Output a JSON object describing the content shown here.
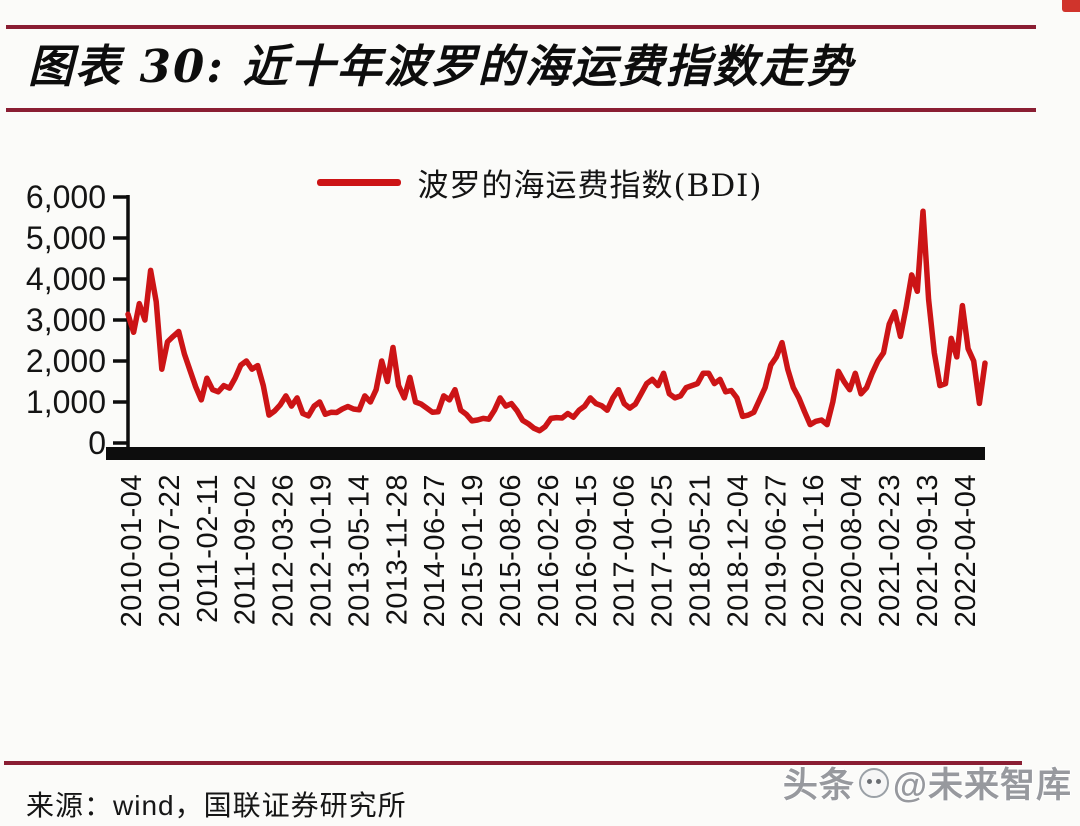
{
  "header": {
    "title": "图表 30:  近十年波罗的海运费指数走势",
    "rule_color": "#8a1e33"
  },
  "legend": {
    "label": "波罗的海运费指数(BDI)"
  },
  "source": {
    "text": "来源：wind，国联证券研究所"
  },
  "watermark": {
    "prefix": "头条",
    "handle": "@未来智库"
  },
  "chart_data": {
    "type": "line",
    "title": "近十年波罗的海运费指数走势",
    "series_name": "波罗的海运费指数(BDI)",
    "line_color": "#cc1416",
    "axis_color": "#0d0d0d",
    "legend_position": "top-center",
    "grid": false,
    "ylim": [
      0,
      6000
    ],
    "y_tick_labels": [
      "6,000",
      "5,000",
      "4,000",
      "3,000",
      "2,000",
      "1,000",
      "0"
    ],
    "x_tick_labels": [
      "2010-01-04",
      "2010-07-22",
      "2011-02-11",
      "2011-09-02",
      "2012-03-26",
      "2012-10-19",
      "2013-05-14",
      "2013-11-28",
      "2014-06-27",
      "2015-01-19",
      "2015-08-06",
      "2016-02-26",
      "2016-09-15",
      "2017-04-06",
      "2017-10-25",
      "2018-05-21",
      "2018-12-04",
      "2019-06-27",
      "2020-01-16",
      "2020-08-04",
      "2021-02-23",
      "2021-09-13",
      "2022-04-04"
    ],
    "sampling": {
      "interval": "monthly-approx",
      "start": "2010-01",
      "end": "2022-09"
    },
    "values": [
      3140,
      2700,
      3400,
      3000,
      4209,
      3450,
      1800,
      2468,
      2600,
      2720,
      2170,
      1773,
      1370,
      1050,
      1580,
      1300,
      1250,
      1400,
      1340,
      1580,
      1900,
      2000,
      1800,
      1888,
      1400,
      680,
      780,
      930,
      1150,
      900,
      1100,
      720,
      660,
      900,
      1000,
      700,
      750,
      745,
      830,
      890,
      830,
      810,
      1150,
      1000,
      1300,
      2000,
      1500,
      2330,
      1400,
      1100,
      1600,
      1000,
      950,
      850,
      750,
      760,
      1150,
      1050,
      1300,
      800,
      700,
      540,
      560,
      600,
      580,
      800,
      1100,
      900,
      960,
      790,
      550,
      470,
      360,
      300,
      400,
      600,
      620,
      610,
      720,
      630,
      800,
      900,
      1100,
      960,
      910,
      800,
      1100,
      1300,
      960,
      850,
      950,
      1200,
      1450,
      1550,
      1400,
      1700,
      1200,
      1100,
      1150,
      1350,
      1400,
      1450,
      1700,
      1700,
      1450,
      1550,
      1250,
      1280,
      1100,
      650,
      680,
      750,
      1050,
      1350,
      1900,
      2100,
      2450,
      1800,
      1350,
      1100,
      760,
      450,
      530,
      560,
      450,
      1000,
      1750,
      1500,
      1300,
      1700,
      1200,
      1350,
      1700,
      2000,
      2200,
      2900,
      3200,
      2600,
      3300,
      4100,
      3700,
      5650,
      3500,
      2200,
      1400,
      1450,
      2550,
      2100,
      3350,
      2300,
      2000,
      965,
      1950
    ]
  }
}
